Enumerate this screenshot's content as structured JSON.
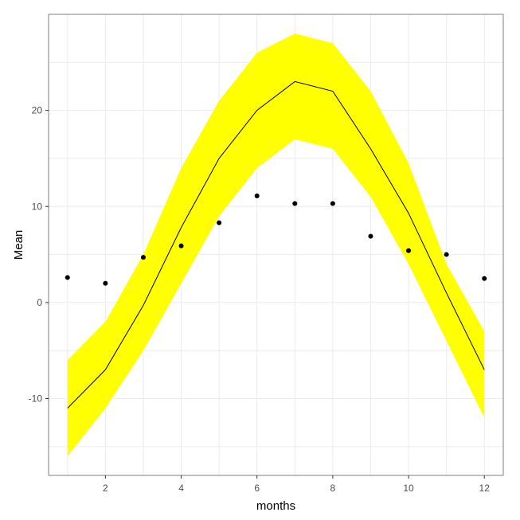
{
  "chart_data": {
    "type": "line",
    "xlabel": "months",
    "ylabel": "Mean",
    "xlim": [
      0.5,
      12.5
    ],
    "ylim": [
      -18,
      30
    ],
    "x_ticks": [
      2,
      4,
      6,
      8,
      10,
      12
    ],
    "y_ticks": [
      -10,
      0,
      10,
      20
    ],
    "grid": true,
    "x": [
      1,
      2,
      3,
      4,
      5,
      6,
      7,
      8,
      9,
      10,
      11,
      12
    ],
    "series": [
      {
        "role": "ribbon",
        "lower": [
          -16,
          -11,
          -5,
          2,
          9,
          14,
          17,
          16,
          11,
          4,
          -4,
          -12
        ],
        "upper": [
          -6,
          -2,
          5,
          14,
          21,
          26,
          28,
          27,
          22,
          14.5,
          4,
          -3
        ]
      },
      {
        "role": "line",
        "values": [
          -11,
          -7,
          -0.3,
          7.8,
          15,
          20,
          23,
          22,
          16,
          9.3,
          1,
          -7
        ]
      },
      {
        "role": "points",
        "values": [
          2.6,
          2.0,
          4.7,
          5.9,
          8.3,
          11.1,
          10.3,
          10.3,
          6.9,
          5.4,
          5.0,
          2.5
        ]
      }
    ],
    "colors": {
      "ribbon": "#ffff00",
      "line": "#000000",
      "points": "#000000",
      "grid": "#ebebeb",
      "panel_border": "#7f7f7f"
    }
  }
}
